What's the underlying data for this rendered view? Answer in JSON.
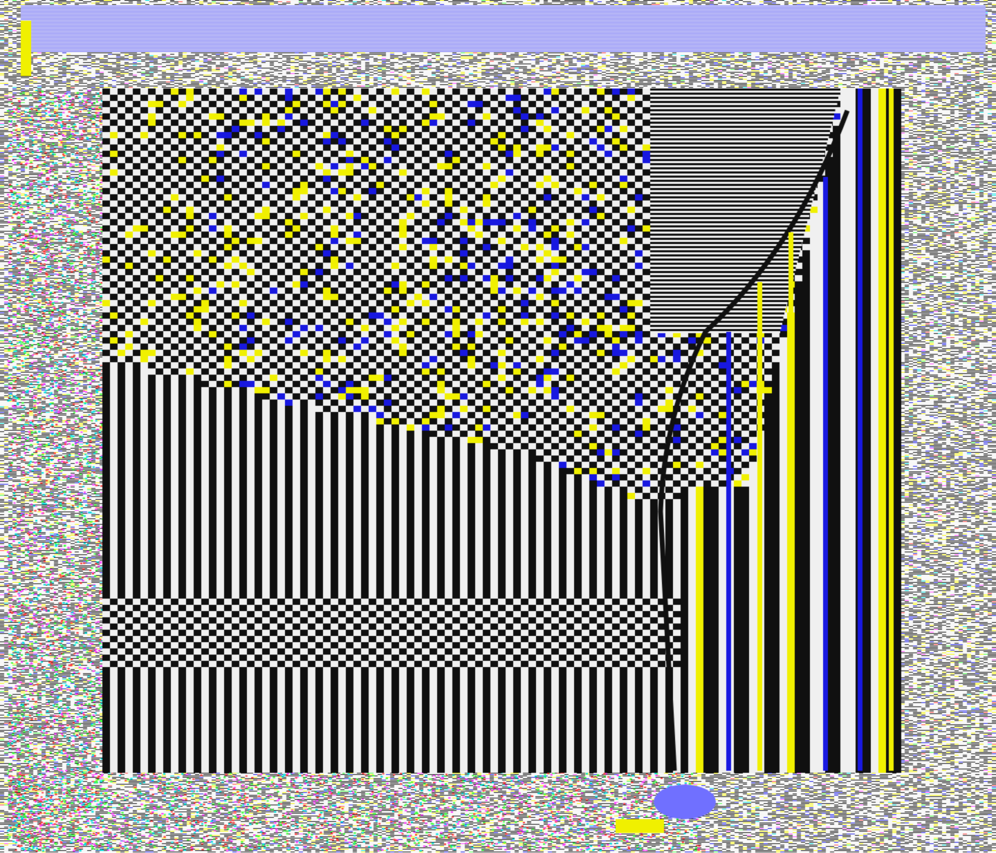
{
  "palette": {
    "black": "#101010",
    "white": "#f0f0f0",
    "yellow": "#f0f000",
    "blue": "#1818e0",
    "light_blue": "#7070ff",
    "noise_accents": [
      "#ff40ff",
      "#00e0e0",
      "#40ff40",
      "#ff4040"
    ]
  }
}
